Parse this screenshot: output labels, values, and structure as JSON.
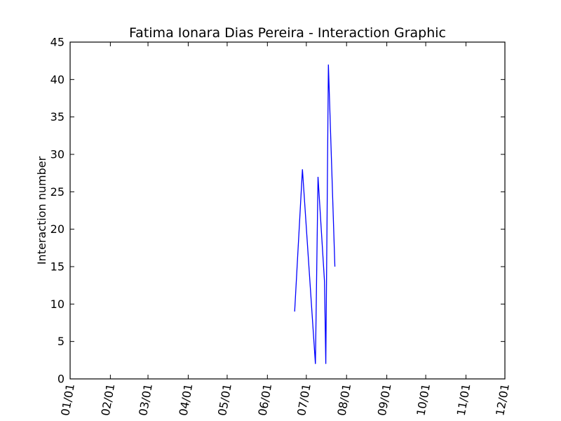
{
  "chart_data": {
    "type": "line",
    "title": "Fatima Ionara Dias Pereira - Interaction Graphic",
    "xlabel": "",
    "ylabel": "Interaction number",
    "x_axis_type": "date",
    "x_tick_labels": [
      "01/01",
      "02/01",
      "03/01",
      "04/01",
      "05/01",
      "06/01",
      "07/01",
      "08/01",
      "09/01",
      "10/01",
      "11/01",
      "12/01"
    ],
    "x_tick_dates": [
      "2016-01-01",
      "2016-02-01",
      "2016-03-01",
      "2016-04-01",
      "2016-05-01",
      "2016-06-01",
      "2016-07-01",
      "2016-08-01",
      "2016-09-01",
      "2016-10-01",
      "2016-11-01",
      "2016-12-01"
    ],
    "x_tick_rotation": "rotated",
    "xlim": [
      "2016-01-01",
      "2016-12-01"
    ],
    "ylim": [
      0,
      45
    ],
    "y_ticks": [
      0,
      5,
      10,
      15,
      20,
      25,
      30,
      35,
      40,
      45
    ],
    "grid": false,
    "legend": "none",
    "series": [
      {
        "color": "#0000ff",
        "x": [
          "2016-06-22",
          "2016-06-28",
          "2016-07-08",
          "2016-07-10",
          "2016-07-15",
          "2016-07-16",
          "2016-07-18",
          "2016-07-23"
        ],
        "y": [
          9,
          28,
          2,
          27,
          13,
          2,
          42,
          15
        ]
      }
    ]
  }
}
